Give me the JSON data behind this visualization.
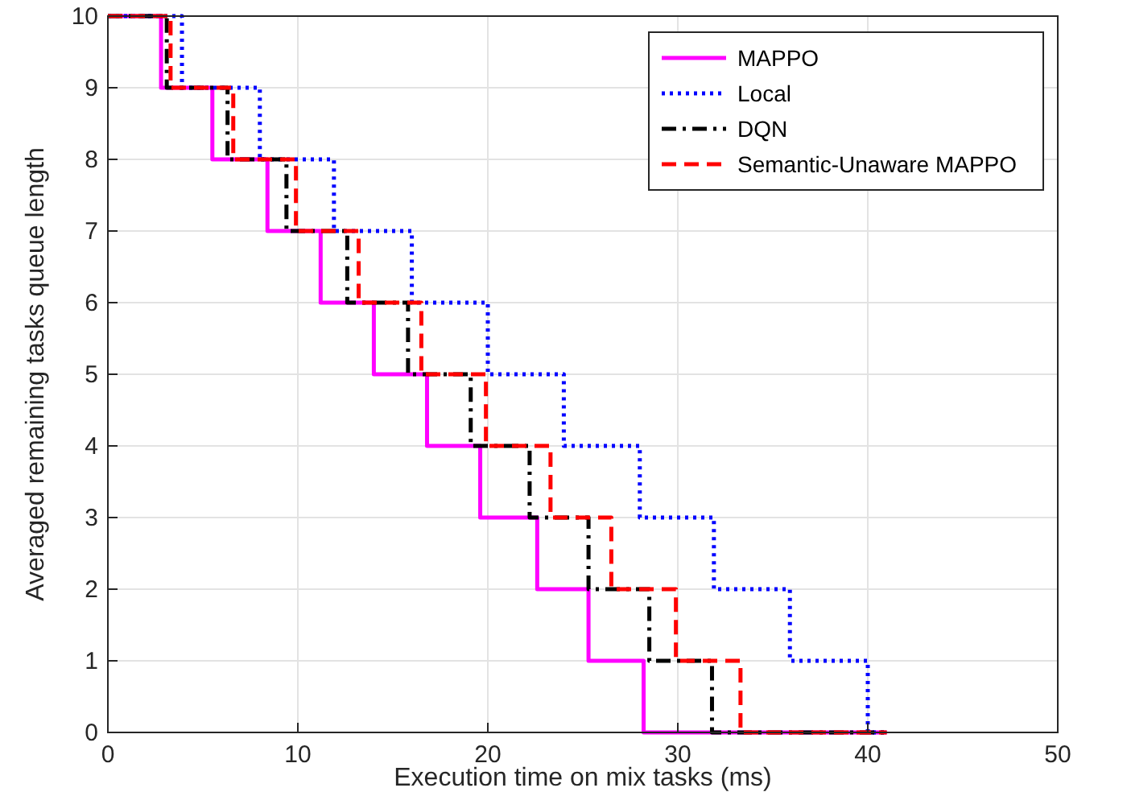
{
  "chart_data": {
    "type": "step",
    "xlabel": "Execution time on mix tasks (ms)",
    "ylabel": "Averaged remaining tasks queue length",
    "xlim": [
      0,
      50
    ],
    "xticks": [
      0,
      10,
      20,
      30,
      40,
      50
    ],
    "ylim": [
      0,
      10
    ],
    "yticks": [
      0,
      1,
      2,
      3,
      4,
      5,
      6,
      7,
      8,
      9,
      10
    ],
    "grid": true,
    "legend": "top right",
    "series": [
      {
        "name": "MAPPO",
        "color": "#ff00ff",
        "line_style": "solid",
        "x": [
          0,
          2.8,
          5.5,
          8.4,
          11.2,
          14.0,
          16.8,
          19.6,
          22.6,
          25.3,
          28.2,
          41
        ],
        "values": [
          10,
          9,
          8,
          7,
          6,
          5,
          4,
          3,
          2,
          1,
          0,
          0
        ]
      },
      {
        "name": "Local",
        "color": "#0000ff",
        "line_style": "dotted",
        "x": [
          0,
          3.9,
          8.0,
          11.9,
          16.0,
          20.0,
          24.0,
          28.0,
          31.9,
          35.9,
          40.0,
          41
        ],
        "values": [
          10,
          9,
          8,
          7,
          6,
          5,
          4,
          3,
          2,
          1,
          0,
          0
        ]
      },
      {
        "name": "DQN",
        "color": "#000000",
        "line_style": "dashdot",
        "x": [
          0,
          3.1,
          6.3,
          9.4,
          12.6,
          15.8,
          19.1,
          22.2,
          25.3,
          28.5,
          31.8,
          41
        ],
        "values": [
          10,
          9,
          8,
          7,
          6,
          5,
          4,
          3,
          2,
          1,
          0,
          0
        ]
      },
      {
        "name": "Semantic-Unaware MAPPO",
        "color": "#ff0000",
        "line_style": "dashed",
        "x": [
          0,
          3.3,
          6.6,
          9.9,
          13.2,
          16.5,
          19.9,
          23.3,
          26.5,
          29.9,
          33.3,
          41
        ],
        "values": [
          10,
          9,
          8,
          7,
          6,
          5,
          4,
          3,
          2,
          1,
          0,
          0
        ]
      }
    ]
  }
}
